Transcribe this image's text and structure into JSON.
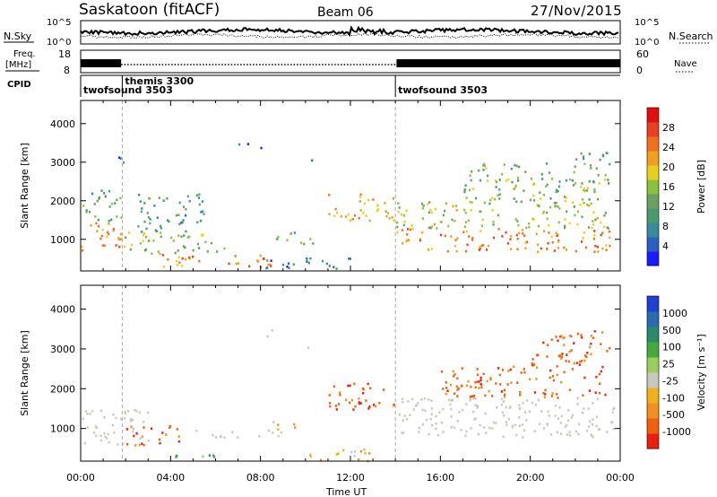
{
  "header": {
    "site": "Saskatoon (fitACF)",
    "beam": "Beam 06",
    "date": "27/Nov/2015"
  },
  "noise_panel": {
    "left_label": "N.Sky",
    "right_label": "N.Search",
    "left_ticks": [
      "10^5",
      "10^0"
    ],
    "right_ticks": [
      "10^5",
      "10^0"
    ]
  },
  "freq_panel": {
    "label_line1": "Freq.",
    "label_line2": "[MHz]",
    "left_ticks": [
      "18",
      "8"
    ],
    "right_ticks": [
      "60",
      "0"
    ],
    "right_label": "Nave"
  },
  "cpid_panel": {
    "label": "CPID",
    "entries": [
      {
        "name": "twofsound",
        "id": "3503",
        "start_hour": 0.0
      },
      {
        "name": "themis",
        "id": "3300",
        "start_hour": 1.85
      },
      {
        "name": "twofsound",
        "id": "3503",
        "start_hour": 14.0
      }
    ]
  },
  "x_axis": {
    "title": "Time UT",
    "range_hours": [
      0,
      24
    ],
    "ticks": [
      "00:00",
      "04:00",
      "08:00",
      "12:00",
      "16:00",
      "20:00",
      "00:00"
    ]
  },
  "chart_data": [
    {
      "type": "heatmap",
      "parameter": "Power",
      "ylabel": "Slant Range [km]",
      "ylim": [
        180,
        4600
      ],
      "yticks": [
        1000,
        2000,
        3000,
        4000
      ],
      "colorbar": {
        "label": "Power [dB]",
        "range": [
          0,
          32
        ],
        "ticks": [
          4,
          8,
          12,
          16,
          20,
          24,
          28
        ],
        "colors": [
          "#1a1aff",
          "#2a60c0",
          "#3a8a9a",
          "#4a9a70",
          "#6aa060",
          "#8cc040",
          "#e8d020",
          "#f0a020",
          "#f07020",
          "#e84020",
          "#e01010"
        ]
      },
      "scatter_regions": [
        {
          "t": [
            0.0,
            1.8
          ],
          "r": [
            700,
            1500
          ],
          "level": 22
        },
        {
          "t": [
            0.0,
            1.8
          ],
          "r": [
            1500,
            2300
          ],
          "level": 12
        },
        {
          "t": [
            1.5,
            1.9
          ],
          "r": [
            2900,
            3300
          ],
          "level": 6
        },
        {
          "t": [
            1.9,
            4.5
          ],
          "r": [
            600,
            1200
          ],
          "level": 16
        },
        {
          "t": [
            3.5,
            8.5
          ],
          "r": [
            300,
            650
          ],
          "level": 24
        },
        {
          "t": [
            2.5,
            5.5
          ],
          "r": [
            1200,
            2200
          ],
          "level": 10
        },
        {
          "t": [
            4.5,
            6.5
          ],
          "r": [
            700,
            1200
          ],
          "level": 14
        },
        {
          "t": [
            7.0,
            8.0
          ],
          "r": [
            3300,
            3500
          ],
          "level": 4
        },
        {
          "t": [
            8.0,
            12.0
          ],
          "r": [
            250,
            550
          ],
          "level": 6
        },
        {
          "t": [
            8.5,
            10.3
          ],
          "r": [
            900,
            1200
          ],
          "level": 14
        },
        {
          "t": [
            10.0,
            10.4
          ],
          "r": [
            2900,
            3100
          ],
          "level": 4
        },
        {
          "t": [
            11.0,
            14.0
          ],
          "r": [
            1500,
            2200
          ],
          "level": 20
        },
        {
          "t": [
            14.0,
            23.5
          ],
          "r": [
            700,
            1300
          ],
          "level": 24
        },
        {
          "t": [
            14.0,
            23.5
          ],
          "r": [
            1300,
            2000
          ],
          "level": 16
        },
        {
          "t": [
            17.0,
            23.5
          ],
          "r": [
            2000,
            3000
          ],
          "level": 14
        },
        {
          "t": [
            22.0,
            23.5
          ],
          "r": [
            3000,
            3400
          ],
          "level": 10
        }
      ]
    },
    {
      "type": "heatmap",
      "parameter": "Velocity",
      "ylabel": "Slant Range [km]",
      "ylim": [
        180,
        4600
      ],
      "yticks": [
        1000,
        2000,
        3000,
        4000
      ],
      "colorbar": {
        "label": "Velocity [m s⁻¹]",
        "ticks": [
          "1000",
          "500",
          "100",
          "25",
          "-25",
          "-100",
          "-500",
          "-1000"
        ],
        "colors": [
          "#2040d0",
          "#2a6ab0",
          "#2a8a6a",
          "#44aa40",
          "#9acc60",
          "#c8c8c0",
          "#f0b020",
          "#f09020",
          "#f06010",
          "#e82010"
        ]
      },
      "scatter_regions": [
        {
          "t": [
            0.0,
            3.0
          ],
          "r": [
            600,
            1500
          ],
          "val": "ground"
        },
        {
          "t": [
            2.0,
            4.5
          ],
          "r": [
            600,
            1100
          ],
          "val": "-500"
        },
        {
          "t": [
            4.0,
            6.0
          ],
          "r": [
            300,
            500
          ],
          "val": "100"
        },
        {
          "t": [
            5.0,
            9.0
          ],
          "r": [
            800,
            1000
          ],
          "val": "ground"
        },
        {
          "t": [
            8.5,
            9.5
          ],
          "r": [
            900,
            1200
          ],
          "val": "-100"
        },
        {
          "t": [
            11.0,
            14.0
          ],
          "r": [
            1500,
            2200
          ],
          "val": "-500"
        },
        {
          "t": [
            10.0,
            13.0
          ],
          "r": [
            200,
            500
          ],
          "val": "-100"
        },
        {
          "t": [
            14.0,
            23.8
          ],
          "r": [
            800,
            1800
          ],
          "val": "ground"
        },
        {
          "t": [
            16.0,
            23.5
          ],
          "r": [
            1800,
            2600
          ],
          "val": "-500"
        },
        {
          "t": [
            20.0,
            23.5
          ],
          "r": [
            2600,
            3500
          ],
          "val": "-500"
        },
        {
          "t": [
            8.0,
            8.5
          ],
          "r": [
            3300,
            3500
          ],
          "val": "ground"
        },
        {
          "t": [
            10.0,
            10.4
          ],
          "r": [
            2900,
            3100
          ],
          "val": "ground"
        }
      ]
    }
  ]
}
